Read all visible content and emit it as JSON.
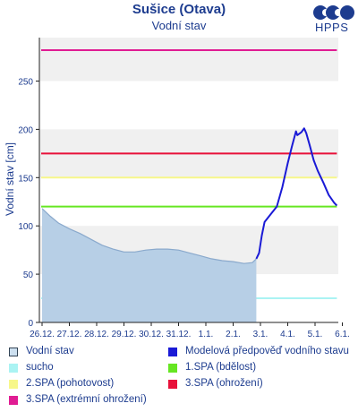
{
  "header": {
    "title": "Sušice (Otava)",
    "subtitle": "Vodní stav",
    "logo_text": "HPPS"
  },
  "chart_data": {
    "type": "line",
    "title": "Sušice (Otava)",
    "subtitle": "Vodní stav",
    "ylabel": "Vodní stav [cm]",
    "xlabel": "",
    "ylim": [
      0,
      295
    ],
    "yticks": [
      0,
      50,
      100,
      150,
      200,
      250
    ],
    "x_tick_labels": [
      "26.12.",
      "27.12.",
      "28.12.",
      "29.12.",
      "30.12.",
      "31.12.",
      "1.1.",
      "2.1.",
      "3.1.",
      "4.1.",
      "5.1.",
      "6.1."
    ],
    "xlim": [
      0,
      11
    ],
    "grid": "horizontal bands",
    "legend_position": "bottom",
    "series": [
      {
        "name": "Vodní stav",
        "kind": "area",
        "color": "#b7cfe6",
        "line_color": "#8aa9cc",
        "points": [
          [
            0,
            118
          ],
          [
            0.3,
            110
          ],
          [
            0.6,
            103
          ],
          [
            1,
            97
          ],
          [
            1.4,
            92
          ],
          [
            1.8,
            86
          ],
          [
            2.2,
            80
          ],
          [
            2.6,
            76
          ],
          [
            3,
            73
          ],
          [
            3.4,
            73
          ],
          [
            3.8,
            75
          ],
          [
            4.2,
            76
          ],
          [
            4.6,
            76
          ],
          [
            5,
            75
          ],
          [
            5.4,
            72
          ],
          [
            5.8,
            69
          ],
          [
            6.2,
            66
          ],
          [
            6.6,
            64
          ],
          [
            7,
            63
          ],
          [
            7.4,
            61
          ],
          [
            7.7,
            62
          ],
          [
            7.85,
            66
          ]
        ]
      },
      {
        "name": "Modelová předpověď vodního stavu",
        "kind": "line",
        "color": "#1a1ad6",
        "points": [
          [
            7.85,
            66
          ],
          [
            7.95,
            72
          ],
          [
            8.05,
            90
          ],
          [
            8.15,
            104
          ],
          [
            8.4,
            113
          ],
          [
            8.6,
            120
          ],
          [
            8.8,
            140
          ],
          [
            9.0,
            165
          ],
          [
            9.15,
            182
          ],
          [
            9.3,
            198
          ],
          [
            9.35,
            194
          ],
          [
            9.5,
            197
          ],
          [
            9.6,
            201
          ],
          [
            9.68,
            196
          ],
          [
            9.8,
            184
          ],
          [
            9.95,
            168
          ],
          [
            10.1,
            157
          ],
          [
            10.3,
            145
          ],
          [
            10.5,
            132
          ],
          [
            10.7,
            124
          ],
          [
            10.8,
            121
          ]
        ]
      }
    ],
    "thresholds": [
      {
        "name": "sucho",
        "value": 25,
        "color": "#aaf3f3"
      },
      {
        "name": "1.SPA (bdělost)",
        "value": 120,
        "color": "#66e622"
      },
      {
        "name": "2.SPA (pohotovost)",
        "value": 150,
        "color": "#f7f78a"
      },
      {
        "name": "3.SPA (ohrožení)",
        "value": 175,
        "color": "#e8113a"
      },
      {
        "name": "3.SPA (extrémní ohrožení)",
        "value": 282,
        "color": "#e01c93"
      }
    ]
  },
  "legend": {
    "items": [
      {
        "label": "Vodní stav",
        "swatch": "#cde0f0",
        "border": "#334455"
      },
      {
        "label": "Modelová předpověď vodního stavu",
        "swatch": "#1a1ad6",
        "border": ""
      },
      {
        "label": "sucho",
        "swatch": "#aaf3f3",
        "border": ""
      },
      {
        "label": "1.SPA (bdělost)",
        "swatch": "#66e622",
        "border": ""
      },
      {
        "label": "2.SPA (pohotovost)",
        "swatch": "#f7f78a",
        "border": ""
      },
      {
        "label": "3.SPA (ohrožení)",
        "swatch": "#e8113a",
        "border": ""
      },
      {
        "label": "3.SPA (extrémní ohrožení)",
        "swatch": "#e01c93",
        "border": ""
      }
    ]
  }
}
